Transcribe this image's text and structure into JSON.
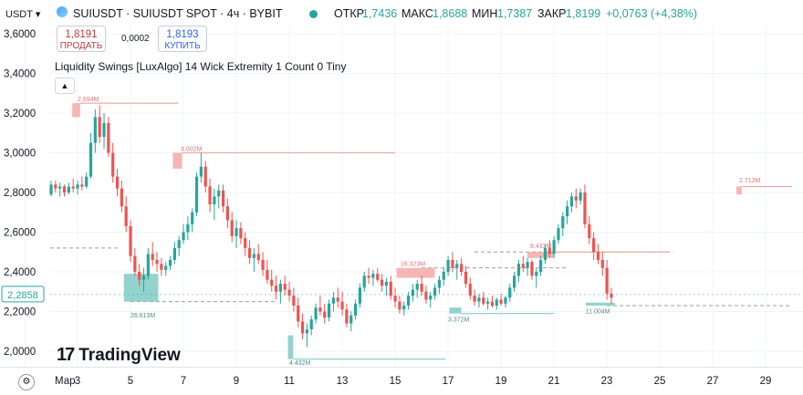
{
  "header": {
    "currency": "USDT",
    "currency_caret": "▾",
    "symbol_title": "SUIUSDT · SUIUSDT SPOT · 4ч · BYBIT",
    "open_label": "ОТКР",
    "open_value": "1,7436",
    "high_label": "МАКС",
    "high_value": "1,8688",
    "low_label": "МИН",
    "low_value": "1,7387",
    "close_label": "ЗАКР",
    "close_value": "1,8199",
    "change": "+0,0763 (+4,38%)"
  },
  "trade": {
    "sell_price": "1,8191",
    "sell_label": "ПРОДАТЬ",
    "spread": "0,0002",
    "buy_price": "1,8193",
    "buy_label": "КУПИТЬ"
  },
  "indicator": {
    "title": "Liquidity Swings [LuxAlgo] 14 Wick Extremity 1 Count 0 Tiny",
    "collapse_icon": "chevron-up-icon"
  },
  "logo": {
    "text": "TradingView",
    "mark": "17"
  },
  "colors": {
    "up": "#26a69a",
    "down": "#ef5350",
    "up_zone": "#80cbc4",
    "down_zone": "#f3a9a7"
  },
  "chart_data": {
    "type": "candlestick",
    "ylim": [
      1.9,
      3.7
    ],
    "y_ticks": [
      2.0,
      2.2,
      2.4,
      2.6,
      2.8,
      3.0,
      3.2,
      3.4,
      3.6
    ],
    "y_tick_labels": [
      "2,0000",
      "2,2000",
      "2,4000",
      "2,6000",
      "2,8000",
      "3,0000",
      "3,2000",
      "3,4000",
      "3,6000"
    ],
    "x_labels": [
      "Мар",
      "3",
      "5",
      "7",
      "9",
      "11",
      "13",
      "15",
      "17",
      "19",
      "21",
      "23",
      "25",
      "27",
      "29"
    ],
    "x_label_day": [
      1,
      3,
      5,
      7,
      9,
      11,
      13,
      15,
      17,
      19,
      21,
      23,
      25,
      27,
      29
    ],
    "x_range_days": [
      1.0,
      30.0
    ],
    "current_price": 2.2858,
    "current_price_label": "2,2858",
    "reference_levels": [
      {
        "y": 2.52,
        "x0": 0.0,
        "x1": 4.5,
        "style": "dashed"
      },
      {
        "y": 2.25,
        "x0": 5.0,
        "x1": 10.5,
        "style": "dashed"
      },
      {
        "y": 2.42,
        "x0": 16.0,
        "x1": 21.5,
        "style": "dashed"
      },
      {
        "y": 2.5,
        "x0": 18.0,
        "x1": 25.5,
        "style": "dashed"
      },
      {
        "y": 2.23,
        "x0": 23.0,
        "x1": 30.0,
        "style": "dashed"
      }
    ],
    "liquidity_zones": [
      {
        "kind": "high",
        "label": "2.694M",
        "x0": 2.8,
        "x1": 3.1,
        "y0": 3.18,
        "y1": 3.25,
        "line_to": 6.8,
        "label_day": 3.0,
        "label_y": 3.26
      },
      {
        "kind": "high",
        "label": "4.002M",
        "x0": 6.6,
        "x1": 6.95,
        "y0": 2.92,
        "y1": 3.0,
        "line_to": 15.0,
        "label_day": 6.9,
        "label_y": 3.01
      },
      {
        "kind": "low",
        "label": "26.613M",
        "x0": 4.75,
        "x1": 6.05,
        "y0": 2.25,
        "y1": 2.39,
        "line_to": 6.0,
        "label_day": 5.0,
        "label_y": 2.17
      },
      {
        "kind": "low",
        "label": "4.432M",
        "x0": 10.95,
        "x1": 11.15,
        "y0": 1.96,
        "y1": 2.08,
        "line_to": 16.9,
        "label_day": 11.0,
        "label_y": 1.93
      },
      {
        "kind": "high",
        "label": "16.323M",
        "x0": 15.05,
        "x1": 16.5,
        "y0": 2.37,
        "y1": 2.42,
        "line_to": 16.5,
        "label_day": 15.2,
        "label_y": 2.43
      },
      {
        "kind": "low",
        "label": "3.372M",
        "x0": 17.05,
        "x1": 17.5,
        "y0": 2.19,
        "y1": 2.22,
        "line_to": 21.0,
        "label_day": 17.0,
        "label_y": 2.15
      },
      {
        "kind": "high",
        "label": "9.433M",
        "x0": 20.0,
        "x1": 21.0,
        "y0": 2.47,
        "y1": 2.5,
        "line_to": 25.3,
        "label_day": 20.1,
        "label_y": 2.52
      },
      {
        "kind": "low",
        "label": "11.004M",
        "x0": 22.2,
        "x1": 23.3,
        "y0": 2.23,
        "y1": 2.245,
        "line_to": 23.3,
        "label_day": 22.2,
        "label_y": 2.19
      },
      {
        "kind": "high",
        "label": "2.713M",
        "x0": 27.9,
        "x1": 28.1,
        "y0": 2.79,
        "y1": 2.83,
        "line_to": 30.0,
        "label_day": 28.0,
        "label_y": 2.85
      }
    ],
    "candles": {
      "start_day": 1.0,
      "step_days": 0.1667,
      "ohlc": [
        [
          2.58,
          2.6,
          2.48,
          2.5
        ],
        [
          2.5,
          2.55,
          2.48,
          2.52
        ],
        [
          2.52,
          2.72,
          2.5,
          2.68
        ],
        [
          2.68,
          2.8,
          2.64,
          2.77
        ],
        [
          2.77,
          2.84,
          2.74,
          2.81
        ],
        [
          2.81,
          2.85,
          2.76,
          2.79
        ],
        [
          2.79,
          2.86,
          2.78,
          2.84
        ],
        [
          2.84,
          2.86,
          2.8,
          2.82
        ],
        [
          2.82,
          2.85,
          2.78,
          2.83
        ],
        [
          2.83,
          2.84,
          2.78,
          2.8
        ],
        [
          2.8,
          2.85,
          2.79,
          2.83
        ],
        [
          2.83,
          2.87,
          2.8,
          2.82
        ],
        [
          2.82,
          2.86,
          2.79,
          2.84
        ],
        [
          2.84,
          2.88,
          2.81,
          2.83
        ],
        [
          2.83,
          2.9,
          2.82,
          2.88
        ],
        [
          2.88,
          3.1,
          2.87,
          3.05
        ],
        [
          3.05,
          3.22,
          3.0,
          3.18
        ],
        [
          3.18,
          3.24,
          3.05,
          3.08
        ],
        [
          3.08,
          3.2,
          3.02,
          3.15
        ],
        [
          3.15,
          3.18,
          2.98,
          3.0
        ],
        [
          3.0,
          3.05,
          2.85,
          2.88
        ],
        [
          2.88,
          2.92,
          2.78,
          2.82
        ],
        [
          2.82,
          2.86,
          2.7,
          2.73
        ],
        [
          2.73,
          2.78,
          2.6,
          2.63
        ],
        [
          2.63,
          2.66,
          2.45,
          2.48
        ],
        [
          2.48,
          2.52,
          2.38,
          2.4
        ],
        [
          2.4,
          2.44,
          2.33,
          2.36
        ],
        [
          2.36,
          2.42,
          2.3,
          2.38
        ],
        [
          2.38,
          2.52,
          2.36,
          2.49
        ],
        [
          2.49,
          2.55,
          2.43,
          2.46
        ],
        [
          2.46,
          2.5,
          2.4,
          2.44
        ],
        [
          2.44,
          2.47,
          2.38,
          2.41
        ],
        [
          2.41,
          2.45,
          2.38,
          2.43
        ],
        [
          2.43,
          2.48,
          2.41,
          2.46
        ],
        [
          2.46,
          2.55,
          2.44,
          2.52
        ],
        [
          2.52,
          2.58,
          2.48,
          2.56
        ],
        [
          2.56,
          2.64,
          2.54,
          2.6
        ],
        [
          2.6,
          2.68,
          2.56,
          2.64
        ],
        [
          2.64,
          2.72,
          2.6,
          2.7
        ],
        [
          2.7,
          2.9,
          2.68,
          2.88
        ],
        [
          2.88,
          3.0,
          2.85,
          2.93
        ],
        [
          2.93,
          2.96,
          2.8,
          2.83
        ],
        [
          2.83,
          2.87,
          2.7,
          2.74
        ],
        [
          2.74,
          2.82,
          2.66,
          2.78
        ],
        [
          2.78,
          2.84,
          2.72,
          2.81
        ],
        [
          2.81,
          2.84,
          2.7,
          2.73
        ],
        [
          2.73,
          2.77,
          2.62,
          2.66
        ],
        [
          2.66,
          2.7,
          2.55,
          2.58
        ],
        [
          2.58,
          2.66,
          2.52,
          2.62
        ],
        [
          2.62,
          2.65,
          2.54,
          2.57
        ],
        [
          2.57,
          2.6,
          2.48,
          2.52
        ],
        [
          2.52,
          2.56,
          2.44,
          2.47
        ],
        [
          2.47,
          2.52,
          2.4,
          2.49
        ],
        [
          2.49,
          2.54,
          2.44,
          2.46
        ],
        [
          2.46,
          2.5,
          2.38,
          2.41
        ],
        [
          2.41,
          2.46,
          2.34,
          2.36
        ],
        [
          2.36,
          2.41,
          2.3,
          2.33
        ],
        [
          2.33,
          2.38,
          2.26,
          2.3
        ],
        [
          2.3,
          2.36,
          2.24,
          2.34
        ],
        [
          2.34,
          2.38,
          2.28,
          2.31
        ],
        [
          2.31,
          2.35,
          2.25,
          2.28
        ],
        [
          2.28,
          2.32,
          2.2,
          2.23
        ],
        [
          2.23,
          2.27,
          2.12,
          2.15
        ],
        [
          2.15,
          2.19,
          2.06,
          2.09
        ],
        [
          2.09,
          2.14,
          2.02,
          2.11
        ],
        [
          2.11,
          2.18,
          2.08,
          2.16
        ],
        [
          2.16,
          2.24,
          2.14,
          2.22
        ],
        [
          2.22,
          2.28,
          2.18,
          2.2
        ],
        [
          2.2,
          2.24,
          2.14,
          2.17
        ],
        [
          2.17,
          2.26,
          2.15,
          2.24
        ],
        [
          2.24,
          2.3,
          2.2,
          2.27
        ],
        [
          2.27,
          2.32,
          2.22,
          2.25
        ],
        [
          2.25,
          2.3,
          2.18,
          2.21
        ],
        [
          2.21,
          2.24,
          2.12,
          2.14
        ],
        [
          2.14,
          2.2,
          2.1,
          2.18
        ],
        [
          2.18,
          2.26,
          2.16,
          2.24
        ],
        [
          2.24,
          2.34,
          2.22,
          2.32
        ],
        [
          2.32,
          2.4,
          2.3,
          2.38
        ],
        [
          2.38,
          2.42,
          2.34,
          2.37
        ],
        [
          2.37,
          2.41,
          2.33,
          2.39
        ],
        [
          2.39,
          2.42,
          2.35,
          2.36
        ],
        [
          2.36,
          2.39,
          2.3,
          2.33
        ],
        [
          2.33,
          2.37,
          2.28,
          2.35
        ],
        [
          2.35,
          2.38,
          2.26,
          2.28
        ],
        [
          2.28,
          2.32,
          2.22,
          2.25
        ],
        [
          2.25,
          2.28,
          2.19,
          2.21
        ],
        [
          2.21,
          2.25,
          2.18,
          2.23
        ],
        [
          2.23,
          2.3,
          2.21,
          2.28
        ],
        [
          2.28,
          2.34,
          2.25,
          2.31
        ],
        [
          2.31,
          2.36,
          2.27,
          2.34
        ],
        [
          2.34,
          2.38,
          2.28,
          2.3
        ],
        [
          2.3,
          2.33,
          2.24,
          2.26
        ],
        [
          2.26,
          2.3,
          2.22,
          2.28
        ],
        [
          2.28,
          2.34,
          2.26,
          2.32
        ],
        [
          2.32,
          2.38,
          2.29,
          2.36
        ],
        [
          2.36,
          2.42,
          2.33,
          2.4
        ],
        [
          2.4,
          2.48,
          2.38,
          2.46
        ],
        [
          2.46,
          2.5,
          2.4,
          2.42
        ],
        [
          2.42,
          2.46,
          2.36,
          2.44
        ],
        [
          2.44,
          2.47,
          2.38,
          2.4
        ],
        [
          2.4,
          2.43,
          2.32,
          2.34
        ],
        [
          2.34,
          2.37,
          2.26,
          2.28
        ],
        [
          2.28,
          2.31,
          2.23,
          2.25
        ],
        [
          2.25,
          2.29,
          2.22,
          2.27
        ],
        [
          2.27,
          2.3,
          2.23,
          2.24
        ],
        [
          2.24,
          2.27,
          2.21,
          2.25
        ],
        [
          2.25,
          2.28,
          2.22,
          2.23
        ],
        [
          2.23,
          2.27,
          2.21,
          2.26
        ],
        [
          2.26,
          2.29,
          2.23,
          2.24
        ],
        [
          2.24,
          2.28,
          2.22,
          2.27
        ],
        [
          2.27,
          2.34,
          2.25,
          2.32
        ],
        [
          2.32,
          2.4,
          2.3,
          2.38
        ],
        [
          2.38,
          2.46,
          2.35,
          2.44
        ],
        [
          2.44,
          2.48,
          2.4,
          2.42
        ],
        [
          2.42,
          2.47,
          2.38,
          2.45
        ],
        [
          2.45,
          2.46,
          2.36,
          2.38
        ],
        [
          2.38,
          2.42,
          2.32,
          2.4
        ],
        [
          2.4,
          2.48,
          2.38,
          2.46
        ],
        [
          2.46,
          2.54,
          2.44,
          2.52
        ],
        [
          2.52,
          2.56,
          2.47,
          2.49
        ],
        [
          2.49,
          2.58,
          2.47,
          2.56
        ],
        [
          2.56,
          2.64,
          2.54,
          2.62
        ],
        [
          2.62,
          2.7,
          2.58,
          2.68
        ],
        [
          2.68,
          2.76,
          2.64,
          2.73
        ],
        [
          2.73,
          2.8,
          2.7,
          2.78
        ],
        [
          2.78,
          2.82,
          2.72,
          2.76
        ],
        [
          2.76,
          2.82,
          2.74,
          2.8
        ],
        [
          2.8,
          2.84,
          2.62,
          2.64
        ],
        [
          2.64,
          2.68,
          2.54,
          2.57
        ],
        [
          2.57,
          2.6,
          2.46,
          2.5
        ],
        [
          2.5,
          2.54,
          2.44,
          2.46
        ],
        [
          2.46,
          2.5,
          2.38,
          2.42
        ],
        [
          2.42,
          2.46,
          2.26,
          2.29
        ],
        [
          2.29,
          2.32,
          2.24,
          2.27
        ]
      ]
    }
  }
}
